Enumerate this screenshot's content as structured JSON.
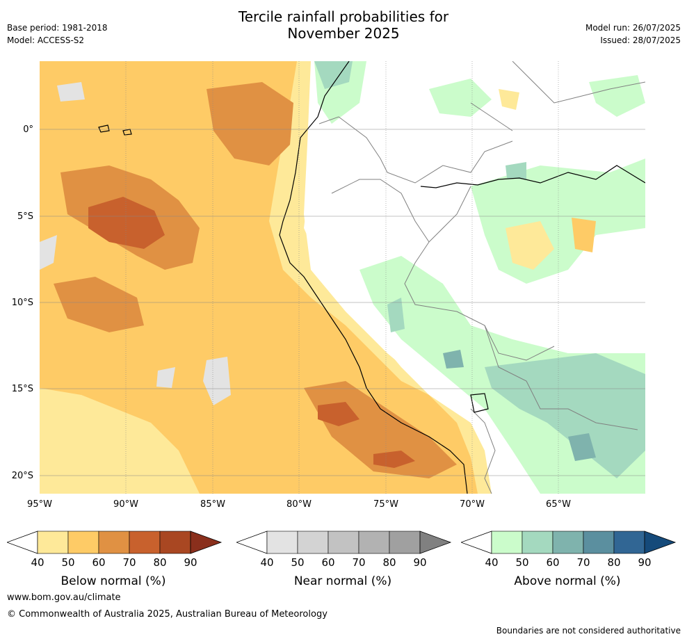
{
  "title_line1": "Tercile rainfall probabilities for",
  "title_line2": "November 2025",
  "base_period": "Base period: 1981-2018",
  "model": "Model: ACCESS-S2",
  "model_run": "Model run: 26/07/2025",
  "issued": "Issued: 28/07/2025",
  "map": {
    "lon_range": [
      -95,
      -60
    ],
    "lat_range": [
      -21,
      4
    ],
    "lat_labels": [
      "0°",
      "5°S",
      "10°S",
      "15°S",
      "20°S"
    ],
    "lon_labels": [
      "95°W",
      "90°W",
      "85°W",
      "80°W",
      "75°W",
      "70°W",
      "65°W"
    ],
    "colors": {
      "below_50": "#fee999",
      "below_60": "#fecb66",
      "below_70": "#e09143",
      "below_80": "#c8612d",
      "near_50": "#e3e3e3",
      "above_50": "#cbfccb",
      "above_60": "#a4d9bf",
      "above_70": "#7fb3ad",
      "coast": "#000000",
      "border": "#808080",
      "grid": "#888888"
    }
  },
  "colorbars": [
    {
      "label": "Below normal (%)",
      "ticks": [
        "40",
        "50",
        "60",
        "70",
        "80",
        "90"
      ],
      "colors": [
        "#fee999",
        "#fecb66",
        "#e09143",
        "#c8612d",
        "#a94722"
      ],
      "extend_color": "#8a2f1c"
    },
    {
      "label": "Near normal (%)",
      "ticks": [
        "40",
        "50",
        "60",
        "70",
        "80",
        "90"
      ],
      "colors": [
        "#e3e3e3",
        "#d3d3d3",
        "#c2c2c2",
        "#b2b2b2",
        "#a0a0a0"
      ],
      "extend_color": "#808080"
    },
    {
      "label": "Above normal (%)",
      "ticks": [
        "40",
        "50",
        "60",
        "70",
        "80",
        "90"
      ],
      "colors": [
        "#cbfccb",
        "#a4d9bf",
        "#7fb3ad",
        "#5b8f9f",
        "#316694"
      ],
      "extend_color": "#154a7a"
    }
  ],
  "footer": {
    "url": "www.bom.gov.au/climate",
    "copyright": "© Commonwealth of Australia 2025, Australian Bureau of Meteorology",
    "disclaimer": "Boundaries are not considered authoritative"
  }
}
